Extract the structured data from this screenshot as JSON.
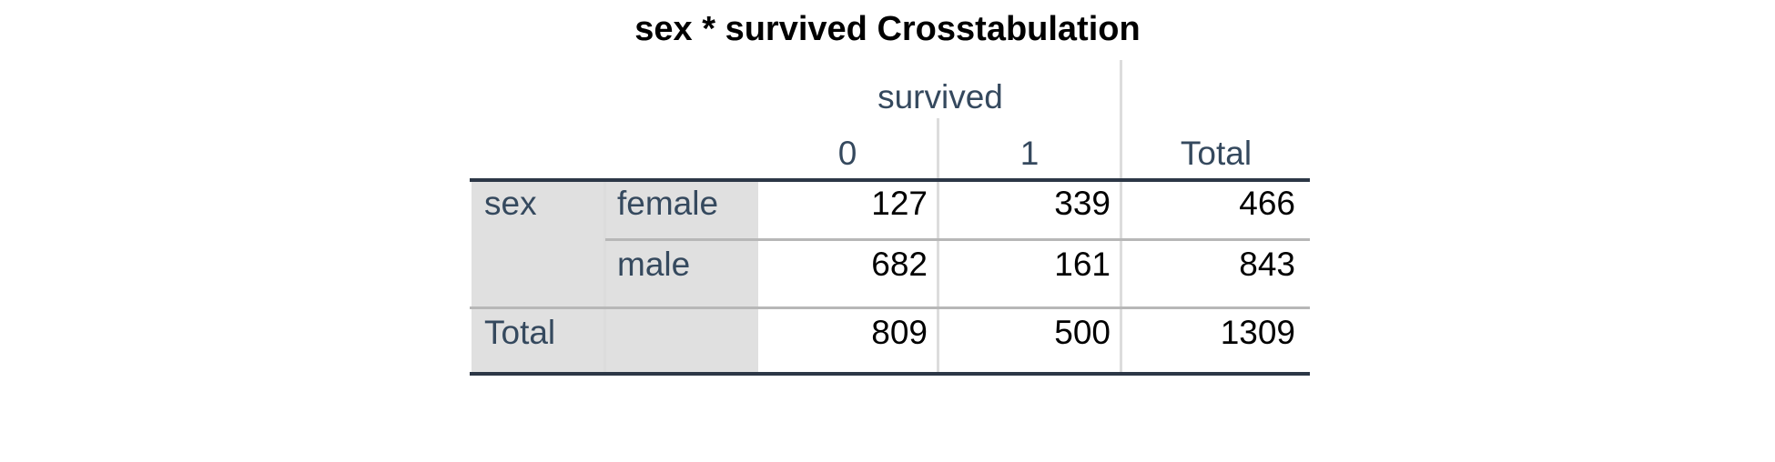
{
  "table": {
    "title": "sex * survived Crosstabulation",
    "col_group_label": "survived",
    "col_headers": [
      "0",
      "1",
      "Total"
    ],
    "row_group_label": "sex",
    "rows": [
      {
        "label": "female",
        "values": [
          "127",
          "339",
          "466"
        ]
      },
      {
        "label": "male",
        "values": [
          "682",
          "161",
          "843"
        ]
      }
    ],
    "total_row": {
      "label": "Total",
      "values": [
        "809",
        "500",
        "1309"
      ]
    }
  }
}
